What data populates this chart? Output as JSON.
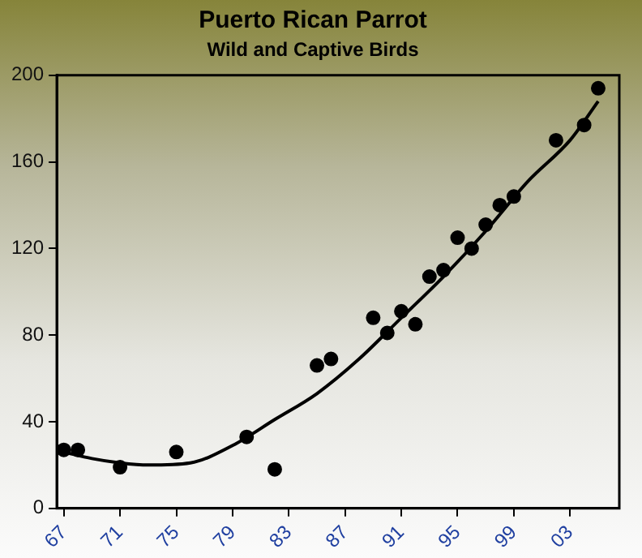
{
  "chart_data": {
    "type": "scatter",
    "title": "Puerto Rican Parrot",
    "subtitle": "Wild and Captive Birds",
    "marker": "circle",
    "grid": false,
    "legend": false,
    "xlim": [
      1966.5,
      2006.5
    ],
    "xticks": [
      {
        "value": 1967,
        "label": "67"
      },
      {
        "value": 1971,
        "label": "71"
      },
      {
        "value": 1975,
        "label": "75"
      },
      {
        "value": 1979,
        "label": "79"
      },
      {
        "value": 1983,
        "label": "83"
      },
      {
        "value": 1987,
        "label": "87"
      },
      {
        "value": 1991,
        "label": "91"
      },
      {
        "value": 1995,
        "label": "95"
      },
      {
        "value": 1999,
        "label": "99"
      },
      {
        "value": 2003,
        "label": "03"
      }
    ],
    "ylim": [
      0,
      200
    ],
    "yticks": [
      0,
      40,
      80,
      120,
      160,
      200
    ],
    "series": [
      {
        "color": "#000000",
        "x": [
          1967,
          1968,
          1971,
          1975,
          1980,
          1982,
          1985,
          1986,
          1989,
          1990,
          1991,
          1992,
          1993,
          1994,
          1995,
          1996,
          1997,
          1998,
          1999,
          2002,
          2004,
          2005
        ],
        "values": [
          27,
          27,
          19,
          26,
          33,
          18,
          66,
          69,
          88,
          81,
          91,
          85,
          107,
          110,
          125,
          120,
          131,
          140,
          144,
          170,
          177,
          194
        ]
      },
      {
        "type": "line",
        "color": "#000000",
        "marker": "none",
        "x": [
          1967,
          1969,
          1971,
          1973,
          1976,
          1979,
          1982,
          1985,
          1988,
          1991,
          1994,
          1997,
          2000,
          2003,
          2005
        ],
        "values": [
          26,
          23,
          21,
          20,
          21,
          29,
          41,
          53,
          69,
          88,
          107,
          128,
          151,
          170,
          188
        ]
      }
    ]
  }
}
